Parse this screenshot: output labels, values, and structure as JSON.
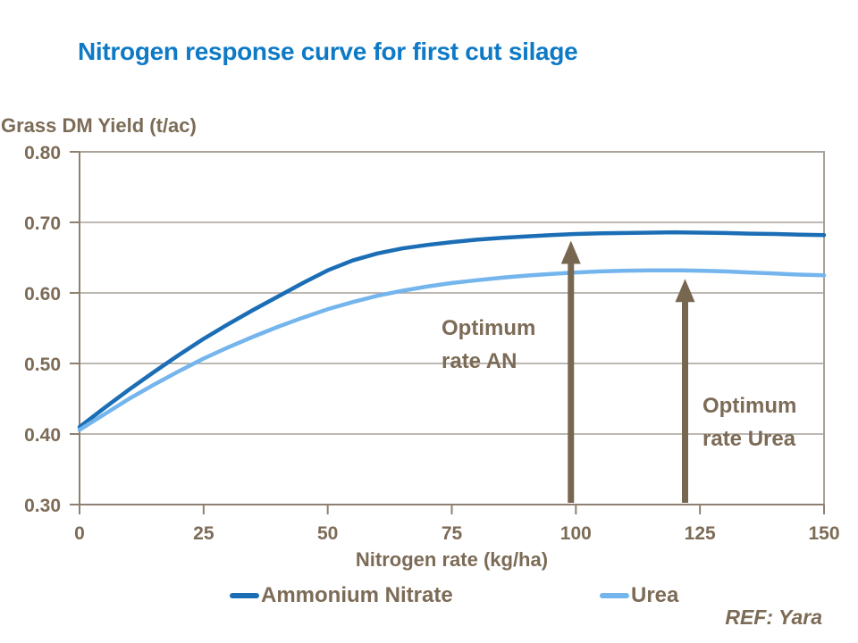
{
  "slide": {
    "title": "Nitrogen response curve for first cut silage",
    "ref": "REF: Yara"
  },
  "colors": {
    "title_blue": "#0e7ac6",
    "text_brown": "#7c6b56",
    "ammonium_nitrate_line": "#1b6eb5",
    "urea_line": "#74b5ed",
    "arrow_brown": "#786750",
    "gridline": "#a8a099",
    "plot_border": "#aaa29b",
    "axis": "#8d8070",
    "background": "#ffffff"
  },
  "chart_data": {
    "type": "line",
    "title": "Nitrogen response curve for first cut silage",
    "x_axis_label": "Nitrogen rate (kg/ha)",
    "y_axis_label": "Grass DM Yield (t/ac)",
    "xlim": [
      0,
      150
    ],
    "ylim": [
      0.3,
      0.8
    ],
    "x_ticks": [
      0,
      25,
      50,
      75,
      100,
      125,
      150
    ],
    "y_ticks": [
      0.3,
      0.4,
      0.5,
      0.6,
      0.7,
      0.8
    ],
    "grid_values": [
      0.4,
      0.5,
      0.6,
      0.7
    ],
    "grid": "horizontal",
    "legend_position": "bottom",
    "x": [
      0,
      5,
      10,
      15,
      20,
      25,
      30,
      35,
      40,
      45,
      50,
      55,
      60,
      65,
      70,
      75,
      80,
      85,
      90,
      95,
      100,
      105,
      110,
      115,
      120,
      125,
      130,
      135,
      140,
      145,
      150
    ],
    "series": [
      {
        "name": "Ammonium Nitrate",
        "color": "#1b6eb5",
        "values": [
          0.41,
          0.437,
          0.463,
          0.488,
          0.512,
          0.535,
          0.556,
          0.576,
          0.595,
          0.614,
          0.632,
          0.646,
          0.656,
          0.663,
          0.668,
          0.672,
          0.6755,
          0.678,
          0.68,
          0.682,
          0.6835,
          0.6845,
          0.685,
          0.6855,
          0.686,
          0.6855,
          0.685,
          0.684,
          0.6835,
          0.6825,
          0.682
        ]
      },
      {
        "name": "Urea",
        "color": "#74b5ed",
        "values": [
          0.406,
          0.428,
          0.45,
          0.47,
          0.489,
          0.507,
          0.523,
          0.538,
          0.552,
          0.565,
          0.577,
          0.587,
          0.596,
          0.603,
          0.609,
          0.614,
          0.618,
          0.6215,
          0.6245,
          0.627,
          0.629,
          0.6305,
          0.6315,
          0.632,
          0.632,
          0.6315,
          0.6305,
          0.629,
          0.6275,
          0.626,
          0.625
        ]
      }
    ],
    "annotations": [
      {
        "line1": "Optimum",
        "line2": "rate AN",
        "arrow_x": 99,
        "arrow_tip_value": 0.674
      },
      {
        "line1": "Optimum",
        "line2": "rate Urea",
        "arrow_x": 122,
        "arrow_tip_value": 0.62
      }
    ]
  }
}
